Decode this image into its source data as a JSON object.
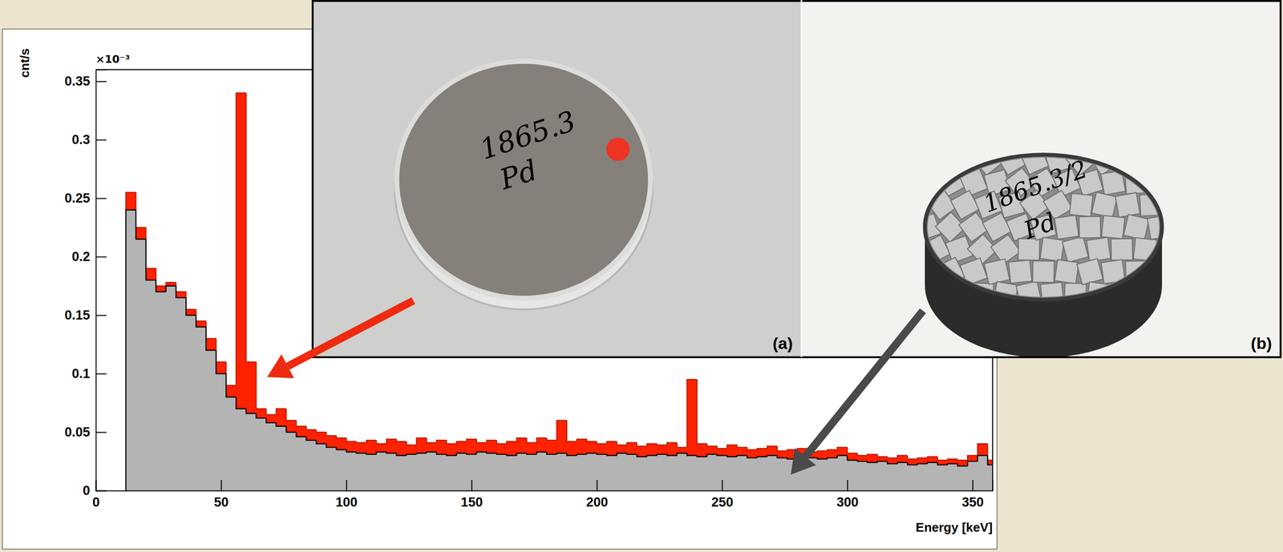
{
  "chart_data": {
    "type": "histogram",
    "xlabel": "Energy [keV]",
    "ylabel": "cnt/s",
    "y_factor": "×10⁻³",
    "bins": [
      12,
      16,
      20,
      24,
      28,
      32,
      36,
      40,
      44,
      48,
      52,
      56,
      60,
      64,
      68,
      72,
      76,
      80,
      84,
      88,
      92,
      96,
      100,
      104,
      108,
      112,
      116,
      120,
      124,
      128,
      132,
      136,
      140,
      144,
      148,
      152,
      156,
      160,
      164,
      168,
      172,
      176,
      180,
      184,
      188,
      192,
      196,
      200,
      204,
      208,
      212,
      216,
      220,
      224,
      228,
      232,
      236,
      240,
      244,
      248,
      252,
      256,
      260,
      264,
      268,
      272,
      276,
      280,
      284,
      288,
      292,
      296,
      300,
      304,
      308,
      312,
      316,
      320,
      324,
      328,
      332,
      336,
      340,
      344,
      348,
      352,
      356,
      360
    ],
    "series": [
      {
        "color": "#ff2200",
        "values": [
          0.255,
          0.225,
          0.19,
          0.175,
          0.178,
          0.17,
          0.155,
          0.145,
          0.13,
          0.11,
          0.09,
          0.34,
          0.11,
          0.07,
          0.065,
          0.07,
          0.06,
          0.055,
          0.052,
          0.05,
          0.047,
          0.045,
          0.042,
          0.041,
          0.043,
          0.04,
          0.044,
          0.042,
          0.039,
          0.045,
          0.041,
          0.043,
          0.04,
          0.042,
          0.044,
          0.041,
          0.043,
          0.04,
          0.042,
          0.045,
          0.041,
          0.045,
          0.043,
          0.06,
          0.042,
          0.044,
          0.042,
          0.04,
          0.042,
          0.039,
          0.041,
          0.038,
          0.04,
          0.039,
          0.041,
          0.037,
          0.095,
          0.04,
          0.038,
          0.036,
          0.039,
          0.037,
          0.035,
          0.036,
          0.038,
          0.034,
          0.035,
          0.036,
          0.033,
          0.034,
          0.035,
          0.037,
          0.032,
          0.03,
          0.031,
          0.029,
          0.028,
          0.03,
          0.027,
          0.028,
          0.029,
          0.026,
          0.027,
          0.026,
          0.03,
          0.04,
          0.026
        ]
      },
      {
        "color": "#b4b4b4",
        "values": [
          0.24,
          0.215,
          0.18,
          0.17,
          0.175,
          0.165,
          0.15,
          0.14,
          0.12,
          0.1,
          0.08,
          0.07,
          0.066,
          0.062,
          0.058,
          0.055,
          0.05,
          0.046,
          0.043,
          0.04,
          0.037,
          0.035,
          0.033,
          0.032,
          0.031,
          0.033,
          0.032,
          0.03,
          0.031,
          0.032,
          0.033,
          0.031,
          0.03,
          0.032,
          0.031,
          0.033,
          0.032,
          0.031,
          0.03,
          0.032,
          0.031,
          0.033,
          0.031,
          0.032,
          0.03,
          0.031,
          0.032,
          0.031,
          0.03,
          0.032,
          0.031,
          0.029,
          0.03,
          0.031,
          0.03,
          0.032,
          0.03,
          0.029,
          0.031,
          0.03,
          0.029,
          0.03,
          0.028,
          0.029,
          0.03,
          0.028,
          0.027,
          0.029,
          0.028,
          0.027,
          0.028,
          0.03,
          0.026,
          0.025,
          0.024,
          0.025,
          0.023,
          0.024,
          0.022,
          0.023,
          0.024,
          0.022,
          0.023,
          0.021,
          0.025,
          0.03,
          0.022
        ]
      }
    ],
    "xlim": [
      0,
      358
    ],
    "ylim": [
      0,
      0.36
    ],
    "xticks": [
      0,
      50,
      100,
      150,
      200,
      250,
      300,
      350
    ],
    "yticks": [
      0,
      0.05,
      0.1,
      0.15,
      0.2,
      0.25,
      0.3,
      0.35
    ],
    "grid": false
  },
  "photos": [
    {
      "label": "(a)",
      "marking": [
        "1865.3",
        "Pd"
      ]
    },
    {
      "label": "(b)",
      "marking": [
        "1865.3/2",
        "Pd"
      ]
    }
  ]
}
